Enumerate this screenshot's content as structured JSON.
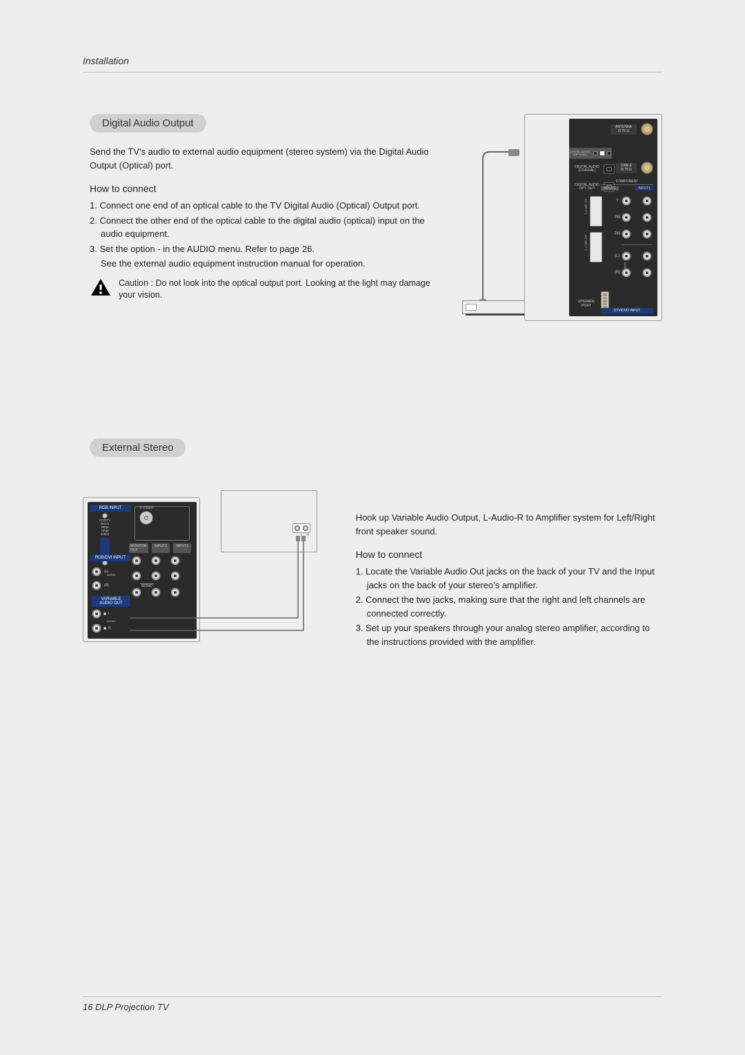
{
  "header": "Installation",
  "digital": {
    "title": "Digital Audio Output",
    "intro": "Send the TV's audio to external audio equipment (stereo system) via the Digital Audio Output (Optical) port.",
    "howto_heading": "How to connect",
    "steps": [
      "1. Connect one end of an optical cable to the TV Digital Audio (Optical) Output port.",
      "2. Connect the other end of the optical cable to the digital audio (optical) input on the audio equipment.",
      "3. Set the                         option -         in the AUDIO menu. Refer to page 26.",
      "See the external audio equipment instruction manual for operation."
    ],
    "caution": "Caution : Do not look into the optical output port. Looking at the light may damage your vision."
  },
  "stereo": {
    "title": "External Stereo",
    "intro": "Hook up Variable Audio Output, L-Audio-R to Amplifier system for Left/Right front speaker sound.",
    "howto_heading": "How to connect",
    "steps": [
      "1. Locate the Variable Audio Out jacks on the back of your TV and the Input jacks on the back of your stereo's amplifier.",
      "2. Connect the two jacks, making sure that the right and left channels are connected correctly.",
      "3. Set up your speakers through your analog stereo amplifier, according to the instructions provided with the amplifier."
    ]
  },
  "diagram_labels": {
    "antenna": "ANTENNA\n℧ 75 Ω",
    "cable": "CABLE\n℧ 75 Ω",
    "digital_audio_coaxial": "DIGITAL AUDIO\n(COAXIAL)",
    "digital_audio_optical": "DIGITAL AUDIO\n(OPTICAL)",
    "component": "COMPONENT",
    "input1": "INPUT1",
    "input2": "INPUT2",
    "y": "Y",
    "pb": "PB",
    "pr": "PR",
    "audio_l": "(L)",
    "audio_r": "(R)",
    "audio": "AUDIO",
    "upgrade_port": "UPGRADE\nPORT",
    "dtv_dvd": "DTV/DVD INPUT",
    "rgb_input": "RGB INPUT",
    "pc_dtv": "PC/DTV\n(XGA/\n480p/\n720p/\n1080i)",
    "svideo": "S-VIDEO",
    "monitor_out": "MONITOR\nOUT",
    "rgb_dvi": "RGB/DVI INPUT",
    "mono": "MONO",
    "variable_audio": "VARIABLE\nAUDIO OUT",
    "l": "L",
    "r": "R"
  },
  "footer": "16   DLP Projection TV",
  "colors": {
    "page_bg": "#eeeeee",
    "dark_panel": "#2a2a2a",
    "blue_strip": "#1a3a7a",
    "pill_bg": "#d0d0d0",
    "coax_brass": "#d4c088",
    "divider": "#c0c0c0"
  }
}
